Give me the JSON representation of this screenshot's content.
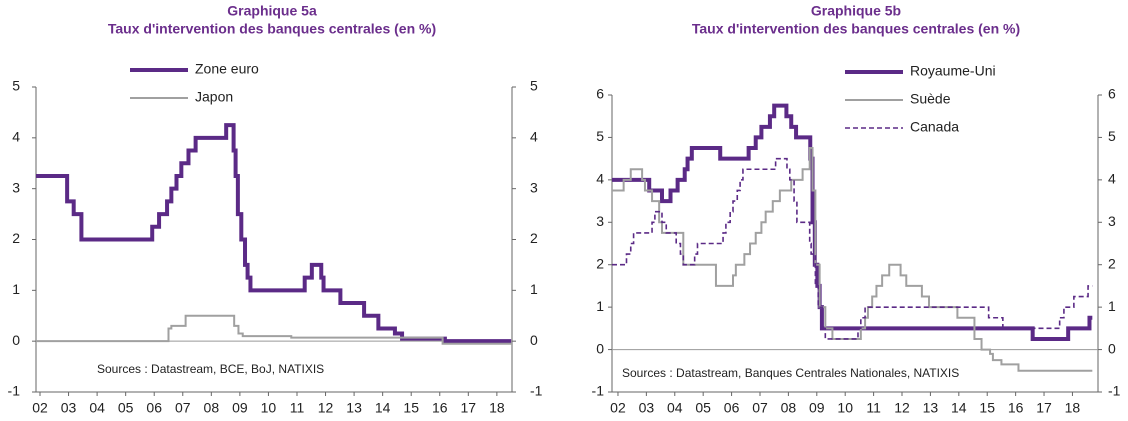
{
  "chart_data": [
    {
      "type": "line",
      "step": true,
      "title": "Graphique 5a",
      "subtitle": "Taux d'intervention des banques centrales (en %)",
      "annotation": "Sources : Datastream, BCE, BoJ, NATIXIS",
      "xlim": [
        2001.86,
        2018.53
      ],
      "ylim": [
        -1,
        5
      ],
      "yticks": [
        -1,
        0,
        1,
        2,
        3,
        4,
        5
      ],
      "xticks": [
        {
          "value": 2002,
          "label": "02"
        },
        {
          "value": 2003,
          "label": "03"
        },
        {
          "value": 2004,
          "label": "04"
        },
        {
          "value": 2005,
          "label": "05"
        },
        {
          "value": 2006,
          "label": "06"
        },
        {
          "value": 2007,
          "label": "07"
        },
        {
          "value": 2008,
          "label": "08"
        },
        {
          "value": 2009,
          "label": "09"
        },
        {
          "value": 2010,
          "label": "10"
        },
        {
          "value": 2011,
          "label": "11"
        },
        {
          "value": 2012,
          "label": "12"
        },
        {
          "value": 2013,
          "label": "13"
        },
        {
          "value": 2014,
          "label": "14"
        },
        {
          "value": 2015,
          "label": "15"
        },
        {
          "value": 2016,
          "label": "16"
        },
        {
          "value": 2017,
          "label": "17"
        },
        {
          "value": 2018,
          "label": "18"
        }
      ],
      "series": [
        {
          "name": "Zone euro",
          "color": "#5b2a86",
          "width": 4,
          "x": [
            2001.86,
            2002.95,
            2003.18,
            2003.45,
            2005.93,
            2006.17,
            2006.45,
            2006.6,
            2006.78,
            2006.95,
            2007.2,
            2007.45,
            2008.52,
            2008.78,
            2008.85,
            2008.93,
            2009.05,
            2009.18,
            2009.27,
            2009.37,
            2011.27,
            2011.52,
            2011.85,
            2011.93,
            2012.52,
            2013.35,
            2013.85,
            2014.43,
            2014.68,
            2016.18,
            2018.5
          ],
          "values": [
            3.25,
            2.75,
            2.5,
            2.0,
            2.25,
            2.5,
            2.75,
            3.0,
            3.25,
            3.5,
            3.75,
            4.0,
            4.25,
            3.75,
            3.25,
            2.5,
            2.0,
            1.5,
            1.25,
            1.0,
            1.25,
            1.5,
            1.25,
            1.0,
            0.75,
            0.5,
            0.25,
            0.15,
            0.05,
            0.0,
            0.0
          ]
        },
        {
          "name": "Japon",
          "color": "#a0a0a0",
          "width": 2,
          "x": [
            2001.86,
            2006.5,
            2006.6,
            2007.1,
            2008.8,
            2008.95,
            2009.1,
            2010.8,
            2016.1,
            2018.5
          ],
          "values": [
            0.0,
            0.25,
            0.3,
            0.5,
            0.3,
            0.15,
            0.1,
            0.07,
            -0.05,
            -0.05
          ]
        }
      ]
    },
    {
      "type": "line",
      "step": true,
      "title": "Graphique 5b",
      "subtitle": "Taux d'intervention des banques centrales (en %)",
      "annotation": "Sources : Datastream, Banques Centrales Nationales, NATIXIS",
      "xlim": [
        2001.79,
        2018.9
      ],
      "ylim": [
        -1,
        6
      ],
      "yticks": [
        -1,
        0,
        1,
        2,
        3,
        4,
        5,
        6
      ],
      "xticks": [
        {
          "value": 2002,
          "label": "02"
        },
        {
          "value": 2003,
          "label": "03"
        },
        {
          "value": 2004,
          "label": "04"
        },
        {
          "value": 2005,
          "label": "05"
        },
        {
          "value": 2006,
          "label": "06"
        },
        {
          "value": 2007,
          "label": "07"
        },
        {
          "value": 2008,
          "label": "08"
        },
        {
          "value": 2009,
          "label": "09"
        },
        {
          "value": 2010,
          "label": "10"
        },
        {
          "value": 2011,
          "label": "11"
        },
        {
          "value": 2012,
          "label": "12"
        },
        {
          "value": 2013,
          "label": "13"
        },
        {
          "value": 2014,
          "label": "14"
        },
        {
          "value": 2015,
          "label": "15"
        },
        {
          "value": 2016,
          "label": "16"
        },
        {
          "value": 2017,
          "label": "17"
        },
        {
          "value": 2018,
          "label": "18"
        }
      ],
      "series": [
        {
          "name": "Royaume-Uni",
          "color": "#5b2a86",
          "width": 4,
          "x": [
            2001.79,
            2003.1,
            2003.55,
            2003.85,
            2004.1,
            2004.35,
            2004.45,
            2004.6,
            2005.6,
            2006.6,
            2006.85,
            2007.05,
            2007.35,
            2007.5,
            2007.93,
            2008.1,
            2008.27,
            2008.77,
            2008.85,
            2008.93,
            2009.02,
            2009.1,
            2009.18,
            2016.6,
            2017.85,
            2018.6,
            2018.7
          ],
          "values": [
            4.0,
            3.75,
            3.5,
            3.75,
            4.0,
            4.25,
            4.5,
            4.75,
            4.5,
            4.75,
            5.0,
            5.25,
            5.5,
            5.75,
            5.5,
            5.25,
            5.0,
            4.5,
            3.0,
            2.0,
            1.5,
            1.0,
            0.5,
            0.25,
            0.5,
            0.75,
            0.75
          ]
        },
        {
          "name": "Suède",
          "color": "#a0a0a0",
          "width": 2,
          "x": [
            2001.79,
            2002.2,
            2002.45,
            2002.85,
            2002.95,
            2003.2,
            2003.45,
            2003.55,
            2004.3,
            2005.45,
            2006.05,
            2006.15,
            2006.45,
            2006.65,
            2006.85,
            2007.05,
            2007.2,
            2007.45,
            2007.7,
            2008.1,
            2008.5,
            2008.75,
            2008.85,
            2008.95,
            2009.1,
            2009.3,
            2009.55,
            2010.55,
            2010.7,
            2010.8,
            2010.95,
            2011.1,
            2011.3,
            2011.55,
            2011.95,
            2012.15,
            2012.7,
            2012.95,
            2013.95,
            2014.55,
            2014.8,
            2015.1,
            2015.2,
            2015.5,
            2016.1,
            2018.7
          ],
          "values": [
            3.75,
            4.0,
            4.25,
            4.0,
            3.75,
            3.5,
            3.0,
            2.75,
            2.0,
            1.5,
            1.75,
            2.0,
            2.25,
            2.5,
            2.75,
            3.0,
            3.25,
            3.5,
            3.75,
            4.0,
            4.25,
            4.75,
            3.75,
            2.0,
            1.0,
            0.5,
            0.25,
            0.5,
            0.75,
            1.0,
            1.25,
            1.5,
            1.75,
            2.0,
            1.75,
            1.5,
            1.25,
            1.0,
            0.75,
            0.25,
            0.0,
            -0.1,
            -0.25,
            -0.35,
            -0.5,
            -0.5
          ]
        },
        {
          "name": "Canada",
          "color": "#5b2a86",
          "width": 1.6,
          "dash": true,
          "x": [
            2001.79,
            2002.3,
            2002.45,
            2002.55,
            2003.2,
            2003.3,
            2003.55,
            2003.7,
            2004.05,
            2004.2,
            2004.3,
            2004.7,
            2004.8,
            2005.7,
            2005.8,
            2005.95,
            2006.05,
            2006.2,
            2006.3,
            2006.4,
            2007.55,
            2007.95,
            2008.05,
            2008.2,
            2008.3,
            2008.75,
            2008.8,
            2008.95,
            2009.05,
            2009.2,
            2009.3,
            2010.45,
            2010.55,
            2010.7,
            2015.05,
            2015.55,
            2017.55,
            2017.7,
            2018.05,
            2018.55,
            2018.7
          ],
          "values": [
            2.0,
            2.25,
            2.5,
            2.75,
            3.0,
            3.25,
            3.0,
            2.75,
            2.5,
            2.25,
            2.0,
            2.25,
            2.5,
            2.75,
            3.0,
            3.25,
            3.5,
            3.75,
            4.0,
            4.25,
            4.5,
            4.25,
            4.0,
            3.5,
            3.0,
            2.5,
            2.25,
            1.5,
            1.0,
            0.5,
            0.25,
            0.5,
            0.75,
            1.0,
            0.75,
            0.5,
            0.75,
            1.0,
            1.25,
            1.5,
            1.5
          ]
        }
      ]
    }
  ]
}
